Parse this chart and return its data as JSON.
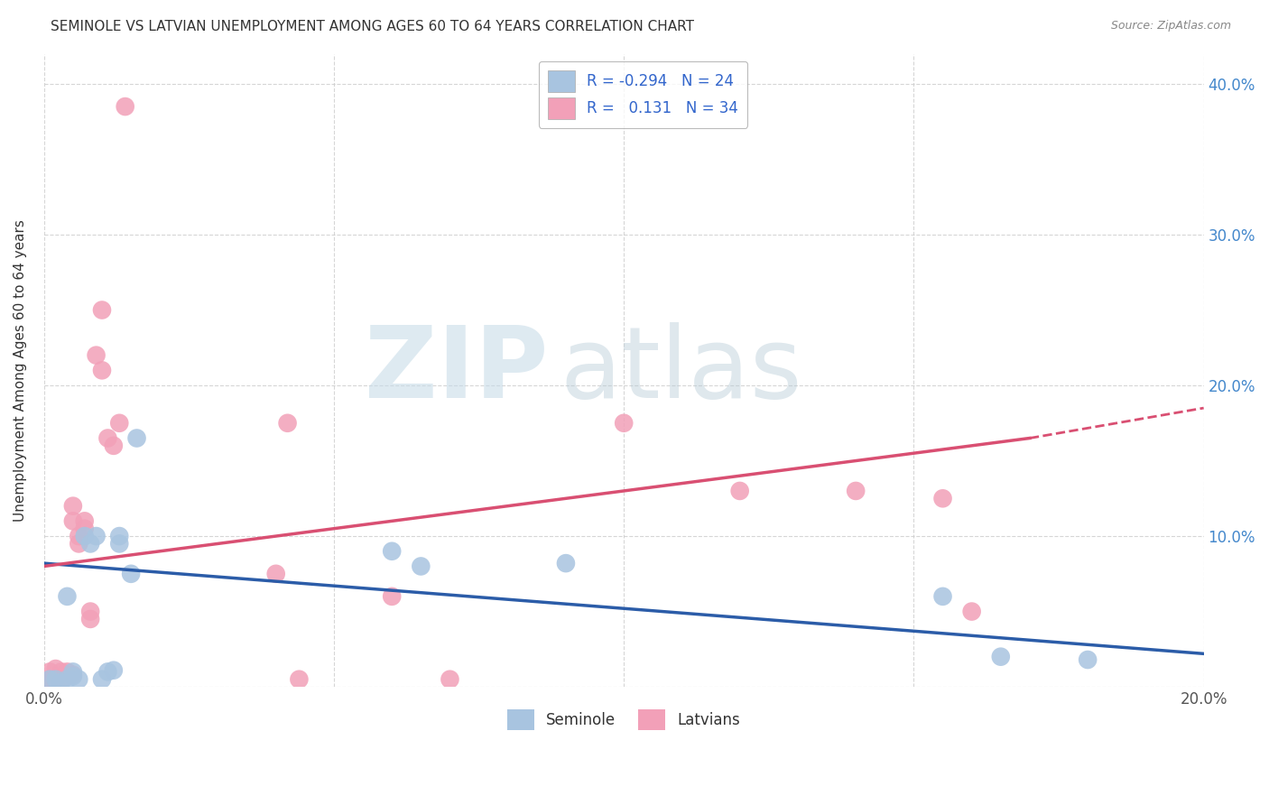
{
  "title": "SEMINOLE VS LATVIAN UNEMPLOYMENT AMONG AGES 60 TO 64 YEARS CORRELATION CHART",
  "source": "Source: ZipAtlas.com",
  "ylabel": "Unemployment Among Ages 60 to 64 years",
  "xlim": [
    0.0,
    0.2
  ],
  "ylim": [
    0.0,
    0.42
  ],
  "xtick_positions": [
    0.0,
    0.05,
    0.1,
    0.15,
    0.2
  ],
  "xticklabels": [
    "0.0%",
    "",
    "",
    "",
    "20.0%"
  ],
  "ytick_positions": [
    0.0,
    0.1,
    0.2,
    0.3,
    0.4
  ],
  "ytick_labels_right": [
    "",
    "10.0%",
    "20.0%",
    "30.0%",
    "40.0%"
  ],
  "seminole_color": "#a8c4e0",
  "latvian_color": "#f2a0b8",
  "seminole_line_color": "#2b5ca8",
  "latvian_line_color": "#d94f72",
  "seminole_label": "Seminole",
  "latvian_label": "Latvians",
  "R_seminole": -0.294,
  "N_seminole": 24,
  "R_latvian": 0.131,
  "N_latvian": 34,
  "background_color": "#ffffff",
  "grid_color": "#cccccc",
  "seminole_line_x0": 0.0,
  "seminole_line_y0": 0.082,
  "seminole_line_x1": 0.2,
  "seminole_line_y1": 0.022,
  "latvian_line_x0": 0.0,
  "latvian_line_y0": 0.08,
  "latvian_line_x1_solid": 0.17,
  "latvian_line_y1_solid": 0.165,
  "latvian_line_x1_dash": 0.2,
  "latvian_line_y1_dash": 0.185,
  "seminole_x": [
    0.001,
    0.002,
    0.003,
    0.004,
    0.004,
    0.005,
    0.005,
    0.006,
    0.007,
    0.008,
    0.009,
    0.01,
    0.011,
    0.012,
    0.013,
    0.013,
    0.015,
    0.016,
    0.06,
    0.065,
    0.09,
    0.155,
    0.165,
    0.18
  ],
  "seminole_y": [
    0.005,
    0.005,
    0.003,
    0.005,
    0.06,
    0.007,
    0.01,
    0.005,
    0.1,
    0.095,
    0.1,
    0.005,
    0.01,
    0.011,
    0.095,
    0.1,
    0.075,
    0.165,
    0.09,
    0.08,
    0.082,
    0.06,
    0.02,
    0.018
  ],
  "latvian_x": [
    0.001,
    0.001,
    0.002,
    0.002,
    0.003,
    0.003,
    0.004,
    0.004,
    0.005,
    0.005,
    0.005,
    0.006,
    0.006,
    0.007,
    0.007,
    0.008,
    0.008,
    0.009,
    0.01,
    0.01,
    0.011,
    0.012,
    0.013,
    0.014,
    0.04,
    0.042,
    0.044,
    0.06,
    0.07,
    0.1,
    0.12,
    0.14,
    0.155,
    0.16
  ],
  "latvian_y": [
    0.005,
    0.01,
    0.003,
    0.012,
    0.005,
    0.01,
    0.007,
    0.01,
    0.008,
    0.11,
    0.12,
    0.095,
    0.1,
    0.105,
    0.11,
    0.045,
    0.05,
    0.22,
    0.25,
    0.21,
    0.165,
    0.16,
    0.175,
    0.385,
    0.075,
    0.175,
    0.005,
    0.06,
    0.005,
    0.175,
    0.13,
    0.13,
    0.125,
    0.05
  ]
}
